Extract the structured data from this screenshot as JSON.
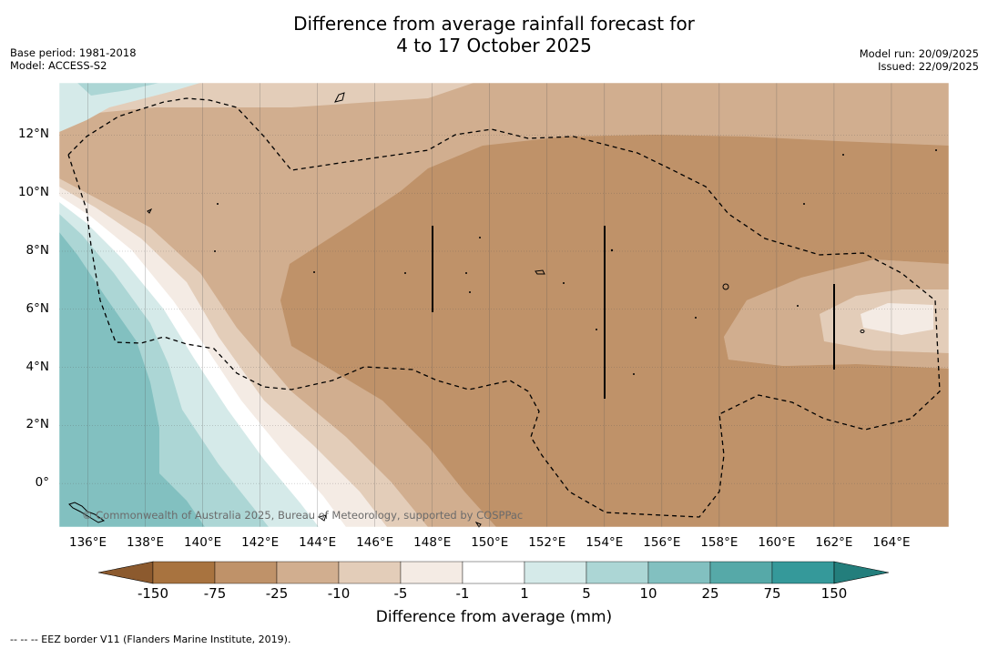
{
  "title": {
    "line1": "Difference from average rainfall forecast for",
    "line2": "4 to 17 October 2025"
  },
  "meta_left": {
    "base_period": "Base period: 1981-2018",
    "model": "Model: ACCESS-S2"
  },
  "meta_right": {
    "model_run": "Model run: 20/09/2025",
    "issued": "Issued: 22/09/2025"
  },
  "map": {
    "lon_range": [
      135,
      166
    ],
    "lat_range": [
      -1.5,
      13.8
    ],
    "x_ticks": [
      {
        "lon": 136,
        "label": "136°E"
      },
      {
        "lon": 138,
        "label": "138°E"
      },
      {
        "lon": 140,
        "label": "140°E"
      },
      {
        "lon": 142,
        "label": "142°E"
      },
      {
        "lon": 144,
        "label": "144°E"
      },
      {
        "lon": 146,
        "label": "146°E"
      },
      {
        "lon": 148,
        "label": "148°E"
      },
      {
        "lon": 150,
        "label": "150°E"
      },
      {
        "lon": 152,
        "label": "152°E"
      },
      {
        "lon": 154,
        "label": "154°E"
      },
      {
        "lon": 156,
        "label": "156°E"
      },
      {
        "lon": 158,
        "label": "158°E"
      },
      {
        "lon": 160,
        "label": "160°E"
      },
      {
        "lon": 162,
        "label": "162°E"
      },
      {
        "lon": 164,
        "label": "164°E"
      }
    ],
    "y_ticks": [
      {
        "lat": 12,
        "label": "12°N"
      },
      {
        "lat": 10,
        "label": "10°N"
      },
      {
        "lat": 8,
        "label": "8°N"
      },
      {
        "lat": 6,
        "label": "6°N"
      },
      {
        "lat": 4,
        "label": "4°N"
      },
      {
        "lat": 2,
        "label": "2°N"
      },
      {
        "lat": 0,
        "label": "0°"
      }
    ],
    "copyright": "© Commonwealth of Australia 2025, Bureau of Meteorology, supported by COSPPac"
  },
  "colorbar": {
    "bounds": [
      "-150",
      "-75",
      "-25",
      "-10",
      "-5",
      "-1",
      "1",
      "5",
      "10",
      "25",
      "75",
      "150"
    ],
    "colors": [
      "#a8733f",
      "#bf9269",
      "#d1ae8f",
      "#e3cdb9",
      "#f4ebe4",
      "#ffffff",
      "#d5eae9",
      "#acd6d5",
      "#82c0c0",
      "#56a9a8",
      "#35999a"
    ],
    "under_color": "#8c5a2e",
    "over_color": "#237e7c",
    "title": "Difference from average (mm)"
  },
  "footnote": "-- -- -- EEZ border V11 (Flanders Marine Institute, 2019)."
}
